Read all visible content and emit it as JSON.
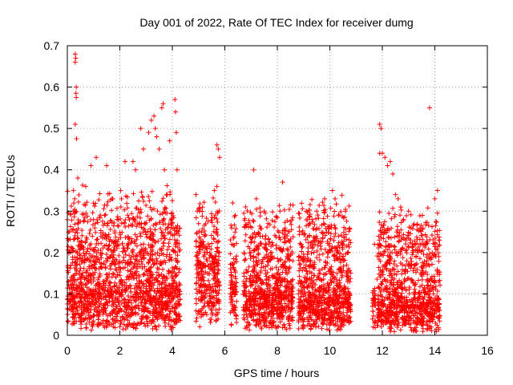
{
  "chart_data": {
    "type": "scatter",
    "title": "Day 001 of 2022, Rate Of TEC Index for receiver dumg",
    "xlabel": "GPS time / hours",
    "ylabel": "ROTI / TECUs",
    "xlim": [
      0,
      16
    ],
    "ylim": [
      0,
      0.7
    ],
    "xticks": [
      0,
      2,
      4,
      6,
      8,
      10,
      12,
      14,
      16
    ],
    "yticks": [
      0,
      0.1,
      0.2,
      0.3,
      0.4,
      0.5,
      0.6,
      0.7
    ],
    "xtick_labels": [
      "0",
      "2",
      "4",
      "6",
      "8",
      "10",
      "12",
      "14",
      "16"
    ],
    "ytick_labels": [
      "0",
      "0.1",
      "0.2",
      "0.3",
      "0.4",
      "0.5",
      "0.6",
      "0.7"
    ],
    "grid": true,
    "marker": "+",
    "color": "#ff0000",
    "series": [
      {
        "name": "ROTI",
        "points": [
          [
            0.3,
            0.68
          ],
          [
            0.32,
            0.67
          ],
          [
            0.3,
            0.66
          ],
          [
            0.34,
            0.6
          ],
          [
            0.33,
            0.585
          ],
          [
            0.34,
            0.575
          ],
          [
            0.3,
            0.51
          ],
          [
            0.35,
            0.475
          ],
          [
            0.4,
            0.38
          ],
          [
            0.28,
            0.33
          ],
          [
            0.7,
            0.36
          ],
          [
            0.9,
            0.41
          ],
          [
            1.1,
            0.43
          ],
          [
            1.5,
            0.41
          ],
          [
            1.7,
            0.33
          ],
          [
            2.2,
            0.42
          ],
          [
            2.5,
            0.42
          ],
          [
            2.6,
            0.4
          ],
          [
            2.8,
            0.5
          ],
          [
            2.9,
            0.45
          ],
          [
            3.1,
            0.49
          ],
          [
            3.2,
            0.52
          ],
          [
            3.3,
            0.53
          ],
          [
            3.35,
            0.5
          ],
          [
            3.4,
            0.48
          ],
          [
            3.5,
            0.45
          ],
          [
            3.6,
            0.55
          ],
          [
            3.65,
            0.56
          ],
          [
            3.7,
            0.4
          ],
          [
            3.9,
            0.47
          ],
          [
            4.1,
            0.57
          ],
          [
            4.12,
            0.54
          ],
          [
            4.15,
            0.49
          ],
          [
            4.18,
            0.4
          ],
          [
            3.8,
            0.34
          ],
          [
            5.7,
            0.46
          ],
          [
            5.75,
            0.45
          ],
          [
            5.8,
            0.43
          ],
          [
            5.7,
            0.36
          ],
          [
            5.6,
            0.35
          ],
          [
            4.9,
            0.34
          ],
          [
            4.95,
            0.3
          ],
          [
            5.0,
            0.27
          ],
          [
            6.3,
            0.32
          ],
          [
            6.4,
            0.29
          ],
          [
            7.1,
            0.4
          ],
          [
            7.2,
            0.33
          ],
          [
            7.5,
            0.3
          ],
          [
            8.2,
            0.37
          ],
          [
            8.1,
            0.3
          ],
          [
            9.1,
            0.3
          ],
          [
            9.5,
            0.3
          ],
          [
            9.8,
            0.33
          ],
          [
            10.1,
            0.35
          ],
          [
            10.2,
            0.33
          ],
          [
            10.6,
            0.3
          ],
          [
            11.7,
            0.22
          ],
          [
            11.9,
            0.51
          ],
          [
            11.95,
            0.5
          ],
          [
            11.9,
            0.44
          ],
          [
            12.0,
            0.44
          ],
          [
            12.1,
            0.43
          ],
          [
            12.2,
            0.41
          ],
          [
            12.3,
            0.42
          ],
          [
            12.4,
            0.39
          ],
          [
            12.5,
            0.34
          ],
          [
            12.6,
            0.33
          ],
          [
            12.7,
            0.31
          ],
          [
            13.0,
            0.3
          ],
          [
            13.8,
            0.55
          ],
          [
            14.0,
            0.33
          ],
          [
            14.1,
            0.35
          ],
          [
            14.15,
            0.23
          ],
          [
            13.9,
            0.2
          ],
          [
            13.7,
            0.18
          ]
        ]
      }
    ],
    "clusters": [
      {
        "x_from": 0.0,
        "x_to": 4.3,
        "y_base": 0.06,
        "y_spread": 0.26,
        "count": 1700
      },
      {
        "x_from": 4.9,
        "x_to": 5.8,
        "y_base": 0.1,
        "y_spread": 0.18,
        "count": 330
      },
      {
        "x_from": 6.2,
        "x_to": 6.45,
        "y_base": 0.07,
        "y_spread": 0.2,
        "count": 90
      },
      {
        "x_from": 6.7,
        "x_to": 8.6,
        "y_base": 0.06,
        "y_spread": 0.22,
        "count": 780
      },
      {
        "x_from": 8.8,
        "x_to": 10.8,
        "y_base": 0.05,
        "y_spread": 0.25,
        "count": 860
      },
      {
        "x_from": 11.6,
        "x_to": 11.75,
        "y_base": 0.05,
        "y_spread": 0.08,
        "count": 30
      },
      {
        "x_from": 11.8,
        "x_to": 14.2,
        "y_base": 0.04,
        "y_spread": 0.24,
        "count": 950
      }
    ]
  }
}
